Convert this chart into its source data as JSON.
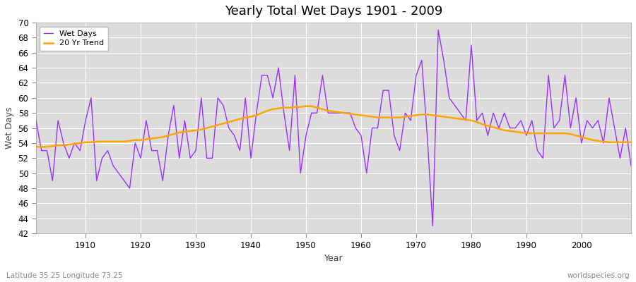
{
  "title": "Yearly Total Wet Days 1901 - 2009",
  "xlabel": "Year",
  "ylabel": "Wet Days",
  "footnote_left": "Latitude 35.25 Longitude 73.25",
  "footnote_right": "worldspecies.org",
  "wet_days_color": "#9B30FF",
  "trend_color": "#FFA500",
  "background_color": "#DCDCDC",
  "grid_color": "#FFFFFF",
  "ylim": [
    42,
    70
  ],
  "yticks": [
    42,
    44,
    46,
    48,
    50,
    52,
    54,
    56,
    58,
    60,
    62,
    64,
    66,
    68,
    70
  ],
  "xlim": [
    1901,
    2009
  ],
  "years": [
    1901,
    1902,
    1903,
    1904,
    1905,
    1906,
    1907,
    1908,
    1909,
    1910,
    1911,
    1912,
    1913,
    1914,
    1915,
    1916,
    1917,
    1918,
    1919,
    1920,
    1921,
    1922,
    1923,
    1924,
    1925,
    1926,
    1927,
    1928,
    1929,
    1930,
    1931,
    1932,
    1933,
    1934,
    1935,
    1936,
    1937,
    1938,
    1939,
    1940,
    1941,
    1942,
    1943,
    1944,
    1945,
    1946,
    1947,
    1948,
    1949,
    1950,
    1951,
    1952,
    1953,
    1954,
    1955,
    1956,
    1957,
    1958,
    1959,
    1960,
    1961,
    1962,
    1963,
    1964,
    1965,
    1966,
    1967,
    1968,
    1969,
    1970,
    1971,
    1972,
    1973,
    1974,
    1975,
    1976,
    1977,
    1978,
    1979,
    1980,
    1981,
    1982,
    1983,
    1984,
    1985,
    1986,
    1987,
    1988,
    1989,
    1990,
    1991,
    1992,
    1993,
    1994,
    1995,
    1996,
    1997,
    1998,
    1999,
    2000,
    2001,
    2002,
    2003,
    2004,
    2005,
    2006,
    2007,
    2008,
    2009
  ],
  "wet_days": [
    57,
    53,
    53,
    49,
    57,
    54,
    52,
    54,
    53,
    57,
    60,
    49,
    52,
    53,
    51,
    50,
    49,
    48,
    54,
    52,
    57,
    53,
    53,
    49,
    55,
    59,
    52,
    57,
    52,
    53,
    60,
    52,
    52,
    60,
    59,
    56,
    55,
    53,
    60,
    52,
    58,
    63,
    63,
    60,
    64,
    58,
    53,
    63,
    50,
    55,
    58,
    58,
    63,
    58,
    58,
    58,
    58,
    58,
    56,
    55,
    50,
    56,
    56,
    61,
    61,
    55,
    53,
    58,
    57,
    63,
    65,
    55,
    43,
    69,
    65,
    60,
    59,
    58,
    57,
    67,
    57,
    58,
    55,
    58,
    56,
    58,
    56,
    56,
    57,
    55,
    57,
    53,
    52,
    63,
    56,
    57,
    63,
    56,
    60,
    54,
    57,
    56,
    57,
    54,
    60,
    56,
    52,
    56,
    51
  ],
  "trend_values": [
    53.5,
    53.5,
    53.5,
    53.6,
    53.7,
    53.7,
    53.8,
    53.9,
    54.0,
    54.1,
    54.1,
    54.2,
    54.2,
    54.2,
    54.2,
    54.2,
    54.2,
    54.3,
    54.4,
    54.4,
    54.5,
    54.6,
    54.7,
    54.8,
    55.0,
    55.2,
    55.4,
    55.5,
    55.6,
    55.7,
    55.8,
    56.0,
    56.2,
    56.4,
    56.6,
    56.8,
    57.0,
    57.2,
    57.4,
    57.5,
    57.7,
    58.0,
    58.3,
    58.5,
    58.6,
    58.7,
    58.7,
    58.8,
    58.8,
    58.9,
    58.9,
    58.7,
    58.5,
    58.3,
    58.2,
    58.1,
    58.0,
    57.9,
    57.8,
    57.7,
    57.6,
    57.5,
    57.4,
    57.4,
    57.4,
    57.4,
    57.4,
    57.5,
    57.6,
    57.7,
    57.8,
    57.8,
    57.7,
    57.6,
    57.5,
    57.4,
    57.3,
    57.2,
    57.1,
    57.0,
    56.8,
    56.5,
    56.3,
    56.1,
    55.9,
    55.7,
    55.6,
    55.5,
    55.4,
    55.3,
    55.3,
    55.3,
    55.3,
    55.3,
    55.3,
    55.3,
    55.3,
    55.2,
    55.0,
    54.8,
    54.6,
    54.4,
    54.3,
    54.2,
    54.1,
    54.1,
    54.1,
    54.1,
    54.1
  ]
}
